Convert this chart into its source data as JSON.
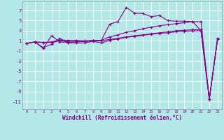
{
  "xlabel": "Windchill (Refroidissement éolien,°C)",
  "background_color": "#b2e8e8",
  "grid_color": "#c8e8e8",
  "line_color": "#880088",
  "x_ticks": [
    0,
    1,
    2,
    3,
    4,
    5,
    6,
    7,
    8,
    9,
    10,
    11,
    12,
    13,
    14,
    15,
    16,
    17,
    18,
    19,
    20,
    21,
    22,
    23
  ],
  "y_ticks": [
    -11,
    -9,
    -7,
    -5,
    -3,
    -1,
    1,
    3,
    5,
    7
  ],
  "ylim": [
    -12.5,
    8.8
  ],
  "xlim": [
    -0.5,
    23.5
  ],
  "series1_x": [
    0,
    1,
    2,
    3,
    4,
    5,
    6,
    7,
    8,
    9,
    10,
    11,
    12,
    13,
    14,
    15,
    16,
    17,
    18,
    19,
    20,
    21,
    22,
    23
  ],
  "series1_y": [
    0.5,
    0.8,
    -0.5,
    2.0,
    0.8,
    0.7,
    0.8,
    0.9,
    1.0,
    1.1,
    4.3,
    4.8,
    7.6,
    6.5,
    6.4,
    5.8,
    6.0,
    5.0,
    4.9,
    4.9,
    4.8,
    3.0,
    -10.5,
    1.5
  ],
  "series2_x": [
    0,
    1,
    2,
    3,
    4,
    5,
    6,
    7,
    8,
    9,
    10,
    11,
    12,
    13,
    14,
    15,
    16,
    17,
    18,
    19,
    20,
    21,
    22,
    23
  ],
  "series2_y": [
    0.5,
    0.8,
    0.7,
    0.8,
    1.2,
    1.1,
    1.1,
    1.0,
    1.1,
    1.1,
    1.8,
    2.2,
    2.7,
    3.0,
    3.4,
    3.7,
    4.0,
    4.2,
    4.4,
    4.6,
    4.8,
    4.8,
    -10.5,
    1.5
  ],
  "series3_x": [
    0,
    1,
    2,
    3,
    4,
    5,
    6,
    7,
    8,
    9,
    10,
    11,
    12,
    13,
    14,
    15,
    16,
    17,
    18,
    19,
    20,
    21,
    22,
    23
  ],
  "series3_y": [
    0.5,
    0.8,
    0.7,
    0.7,
    1.0,
    0.9,
    0.9,
    0.9,
    1.0,
    1.0,
    1.3,
    1.5,
    1.8,
    2.0,
    2.2,
    2.4,
    2.6,
    2.8,
    3.0,
    3.1,
    3.2,
    3.2,
    -10.5,
    1.5
  ],
  "series4_x": [
    0,
    1,
    2,
    3,
    4,
    5,
    6,
    7,
    8,
    9,
    10,
    11,
    12,
    13,
    14,
    15,
    16,
    17,
    18,
    19,
    20,
    21,
    22,
    23
  ],
  "series4_y": [
    0.5,
    0.8,
    -0.3,
    0.3,
    1.5,
    0.6,
    0.6,
    0.6,
    0.9,
    0.6,
    1.1,
    1.4,
    1.7,
    1.9,
    2.1,
    2.3,
    2.5,
    2.6,
    2.8,
    2.9,
    3.0,
    3.0,
    -10.5,
    1.3
  ]
}
